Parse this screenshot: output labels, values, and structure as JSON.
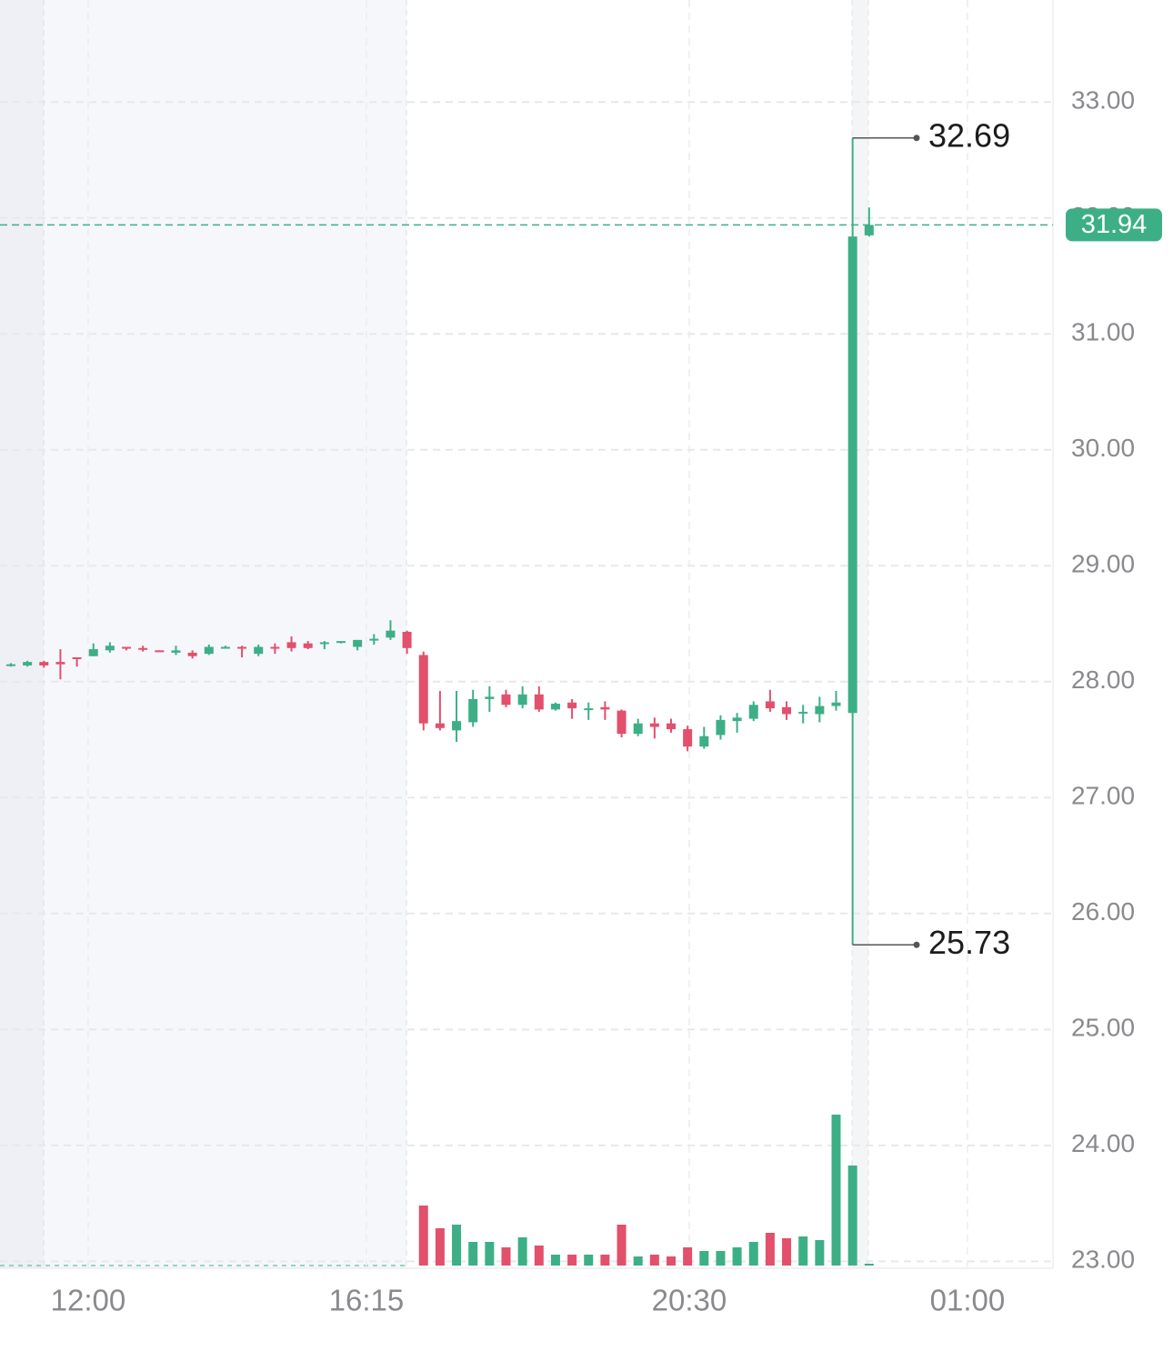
{
  "chart_data": {
    "type": "candlestick",
    "up_color": "#3daf86",
    "down_color": "#e2506c",
    "grid": true,
    "open": [
      28.14,
      28.14,
      28.17,
      28.17,
      28.21,
      28.22,
      28.27,
      28.3,
      28.29,
      28.27,
      28.25,
      28.25,
      28.24,
      28.29,
      28.3,
      28.24,
      28.3,
      28.34,
      28.33,
      28.33,
      28.34,
      28.3,
      28.36,
      28.38,
      28.43,
      28.23,
      27.64,
      27.58,
      27.65,
      27.85,
      27.89,
      27.8,
      27.89,
      27.76,
      27.82,
      27.76,
      27.78,
      27.75,
      27.55,
      27.64,
      27.64,
      27.59,
      27.44,
      27.54,
      27.66,
      27.68,
      27.83,
      27.78,
      27.73,
      27.72,
      27.79,
      27.73,
      31.85
    ],
    "high": [
      28.16,
      28.18,
      28.18,
      28.28,
      28.21,
      28.33,
      28.34,
      28.3,
      28.31,
      28.27,
      28.31,
      28.27,
      28.32,
      28.31,
      28.31,
      28.32,
      28.33,
      28.39,
      28.35,
      28.35,
      28.35,
      28.36,
      28.41,
      28.53,
      28.44,
      28.26,
      27.92,
      27.92,
      27.93,
      27.96,
      27.93,
      27.96,
      27.96,
      27.82,
      27.85,
      27.82,
      27.83,
      27.76,
      27.68,
      27.69,
      27.68,
      27.62,
      27.61,
      27.71,
      27.73,
      27.83,
      27.93,
      27.83,
      27.8,
      27.87,
      27.92,
      32.69,
      32.09
    ],
    "low": [
      28.13,
      28.13,
      28.12,
      28.02,
      28.13,
      28.22,
      28.25,
      28.27,
      28.26,
      28.26,
      28.23,
      28.2,
      28.23,
      28.29,
      28.21,
      28.22,
      28.24,
      28.26,
      28.28,
      28.28,
      28.33,
      28.27,
      28.32,
      28.36,
      28.24,
      27.58,
      27.58,
      27.48,
      27.61,
      27.74,
      27.78,
      27.77,
      27.74,
      27.75,
      27.68,
      27.67,
      27.67,
      27.52,
      27.53,
      27.51,
      27.56,
      27.4,
      27.42,
      27.5,
      27.56,
      27.66,
      27.74,
      27.67,
      27.64,
      27.65,
      27.75,
      25.73,
      31.84
    ],
    "close": [
      28.15,
      28.17,
      28.14,
      28.15,
      28.2,
      28.28,
      28.31,
      28.29,
      28.28,
      28.26,
      28.27,
      28.22,
      28.3,
      28.3,
      28.29,
      28.3,
      28.29,
      28.29,
      28.29,
      28.34,
      28.35,
      28.36,
      28.37,
      28.44,
      28.29,
      27.64,
      27.6,
      27.66,
      27.85,
      27.87,
      27.8,
      27.89,
      27.76,
      27.81,
      27.77,
      27.77,
      27.76,
      27.55,
      27.64,
      27.61,
      27.59,
      27.44,
      27.53,
      27.67,
      27.69,
      27.8,
      27.77,
      27.72,
      27.74,
      27.79,
      27.82,
      31.84,
      31.94
    ],
    "volume": [
      0,
      0,
      0,
      0,
      0,
      0,
      0,
      0,
      0,
      0,
      0,
      0,
      0,
      0,
      0,
      0,
      0,
      0,
      0,
      0,
      0,
      0,
      0,
      0,
      0,
      66,
      41,
      45,
      26,
      26,
      20,
      31,
      22,
      12,
      12,
      12,
      12,
      45,
      10,
      12,
      10,
      20,
      16,
      16,
      20,
      26,
      36,
      30,
      32,
      28,
      166,
      110,
      2
    ],
    "volume_lim": [
      0,
      200
    ],
    "ylim": [
      22.94,
      33.88
    ],
    "yticks": [
      {
        "value": 23,
        "label": "23.00"
      },
      {
        "value": 24,
        "label": "24.00"
      },
      {
        "value": 25,
        "label": "25.00"
      },
      {
        "value": 26,
        "label": "26.00"
      },
      {
        "value": 27,
        "label": "27.00"
      },
      {
        "value": 28,
        "label": "28.00"
      },
      {
        "value": 29,
        "label": "29.00"
      },
      {
        "value": 30,
        "label": "30.00"
      },
      {
        "value": 31,
        "label": "31.00"
      },
      {
        "value": 32,
        "label": "32.00"
      },
      {
        "value": 33,
        "label": "33.00"
      }
    ],
    "xlim": [
      -0.66,
      63.14
    ],
    "xticks": [
      {
        "value": 4.68,
        "label": "12:00"
      },
      {
        "value": 21.54,
        "label": "16:15"
      },
      {
        "value": 41.1,
        "label": "20:30"
      },
      {
        "value": 57.96,
        "label": "01:00"
      }
    ]
  }
}
